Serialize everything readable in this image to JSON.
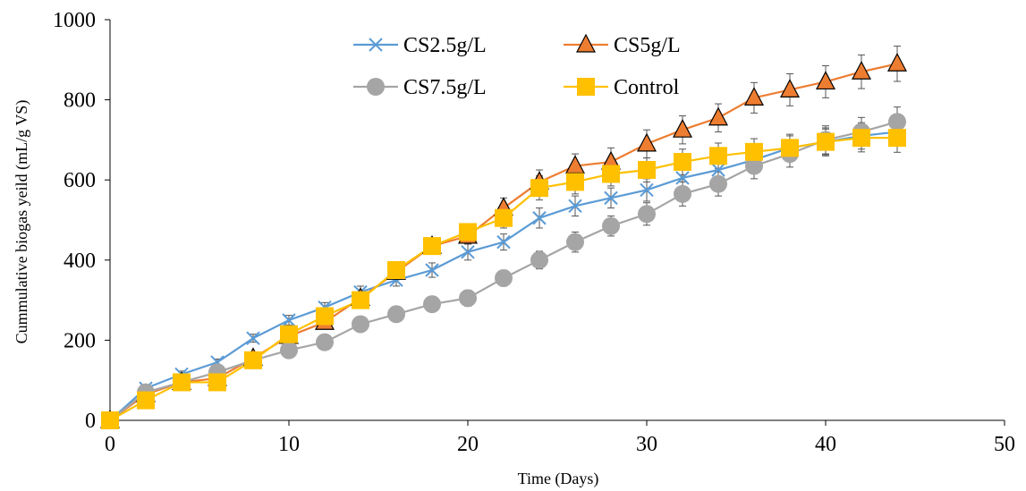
{
  "chart_data": {
    "type": "line",
    "xlabel": "Time (Days)",
    "ylabel": "Cummulative biogas yeild (mL/g VS)",
    "xlim": [
      0,
      50
    ],
    "ylim": [
      0,
      1000
    ],
    "xticks": [
      "0",
      "10",
      "20",
      "30",
      "40",
      "50"
    ],
    "yticks": [
      "0",
      "200",
      "400",
      "600",
      "800",
      "1000"
    ],
    "grid": false,
    "error_bars": true,
    "legend_position": "top-center",
    "x": [
      0,
      2,
      4,
      6,
      8,
      10,
      12,
      14,
      16,
      18,
      20,
      22,
      24,
      26,
      28,
      30,
      32,
      34,
      36,
      38,
      40,
      42,
      44
    ],
    "series": [
      {
        "name": "CS2.5g/L",
        "marker": "x",
        "color": "#5B9BD5",
        "values": [
          0,
          80,
          115,
          145,
          205,
          250,
          282,
          320,
          350,
          375,
          420,
          445,
          505,
          535,
          555,
          575,
          605,
          625,
          650,
          680,
          695,
          710,
          720
        ],
        "errors": [
          0,
          8,
          8,
          8,
          10,
          12,
          12,
          15,
          15,
          18,
          20,
          20,
          25,
          25,
          25,
          28,
          28,
          30,
          30,
          30,
          32,
          33,
          34
        ]
      },
      {
        "name": "CS5g/L",
        "marker": "triangle",
        "color": "#ED7D31",
        "values": [
          0,
          65,
          95,
          105,
          155,
          210,
          245,
          305,
          370,
          435,
          460,
          530,
          595,
          635,
          645,
          690,
          725,
          755,
          805,
          825,
          845,
          870,
          890
        ],
        "errors": [
          0,
          8,
          8,
          8,
          10,
          12,
          12,
          15,
          15,
          18,
          20,
          25,
          30,
          30,
          35,
          35,
          35,
          35,
          38,
          40,
          40,
          42,
          44
        ]
      },
      {
        "name": "CS7.5g/L",
        "marker": "circle",
        "color": "#A5A5A5",
        "values": [
          0,
          70,
          95,
          120,
          150,
          175,
          195,
          240,
          265,
          290,
          305,
          355,
          400,
          445,
          485,
          515,
          565,
          590,
          635,
          665,
          700,
          720,
          745
        ],
        "errors": [
          0,
          8,
          8,
          8,
          10,
          12,
          12,
          15,
          15,
          18,
          20,
          20,
          22,
          25,
          25,
          28,
          30,
          30,
          32,
          33,
          35,
          36,
          37
        ]
      },
      {
        "name": "Control",
        "marker": "square",
        "color": "#FFC000",
        "values": [
          0,
          50,
          95,
          95,
          150,
          215,
          260,
          300,
          375,
          435,
          470,
          505,
          580,
          595,
          615,
          625,
          645,
          660,
          670,
          680,
          695,
          705,
          705
        ],
        "errors": [
          0,
          8,
          8,
          8,
          10,
          12,
          12,
          15,
          15,
          18,
          20,
          25,
          30,
          30,
          30,
          30,
          32,
          32,
          33,
          34,
          35,
          35,
          36
        ]
      }
    ]
  }
}
